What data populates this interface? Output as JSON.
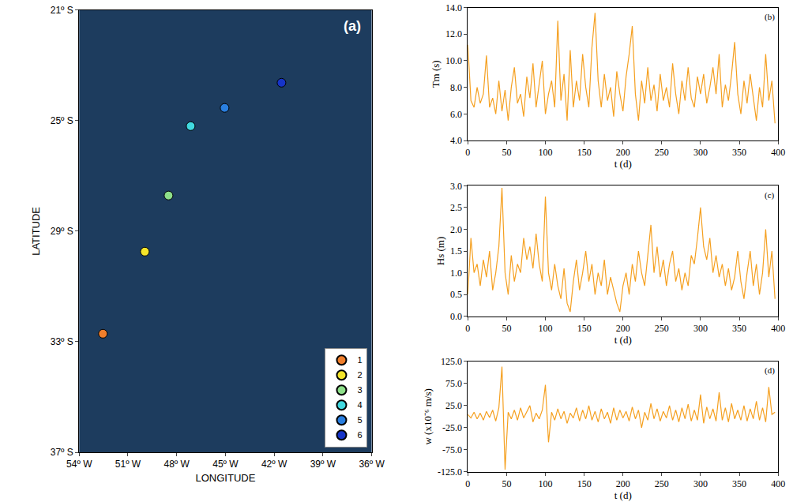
{
  "chart_data": [
    {
      "type": "scatter",
      "title": "(a)",
      "x_label": "LONGITUDE",
      "y_label": "LATITUDE",
      "marker": "circle",
      "legend": "bottom right",
      "xlim": [
        -54,
        -36
      ],
      "xticks": [
        {
          "value": -54,
          "label": "54º W"
        },
        {
          "value": -51,
          "label": "51º W"
        },
        {
          "value": -48,
          "label": "48º W"
        },
        {
          "value": -45,
          "label": "45º W"
        },
        {
          "value": -42,
          "label": "42º W"
        },
        {
          "value": -39,
          "label": "39º W"
        },
        {
          "value": -36,
          "label": "36º W"
        }
      ],
      "ylim": [
        -37,
        -21
      ],
      "yticks": [
        {
          "value": -37,
          "label": "37º S"
        },
        {
          "value": -33,
          "label": "33º S"
        },
        {
          "value": -29,
          "label": "29º S"
        },
        {
          "value": -25,
          "label": "25º S"
        },
        {
          "value": -21,
          "label": "21º S"
        }
      ],
      "series": [
        {
          "name": "1",
          "color": "#f07f2c",
          "x": [
            -52.54
          ],
          "values": [
            -32.71
          ]
        },
        {
          "name": "2",
          "color": "#f5e52a",
          "x": [
            -49.96
          ],
          "values": [
            -29.74
          ]
        },
        {
          "name": "3",
          "color": "#8ee08a",
          "x": [
            -48.5
          ],
          "values": [
            -27.71
          ]
        },
        {
          "name": "4",
          "color": "#41d9e0",
          "x": [
            -47.14
          ],
          "values": [
            -25.2
          ]
        },
        {
          "name": "5",
          "color": "#2a7fe0",
          "x": [
            -45.05
          ],
          "values": [
            -24.54
          ]
        },
        {
          "name": "6",
          "color": "#1634c8",
          "x": [
            -41.55
          ],
          "values": [
            -23.63
          ]
        }
      ]
    },
    {
      "type": "line",
      "title": "(b)",
      "x_label": "t (d)",
      "y_label": "Tm (s)",
      "color": "#f5a020",
      "xlim": [
        0,
        400
      ],
      "xticks": [
        0,
        50,
        100,
        150,
        200,
        250,
        300,
        350,
        400
      ],
      "ylim": [
        4,
        14
      ],
      "yticks": [
        {
          "value": 4,
          "label": "4.0"
        },
        {
          "value": 6,
          "label": "6.0"
        },
        {
          "value": 8,
          "label": "8.0"
        },
        {
          "value": 10,
          "label": "10.0"
        },
        {
          "value": 12,
          "label": "12.0"
        },
        {
          "value": 14,
          "label": "14.0"
        }
      ],
      "x": [
        0,
        4,
        8,
        12,
        16,
        20,
        24,
        28,
        32,
        36,
        40,
        44,
        48,
        52,
        56,
        60,
        64,
        68,
        72,
        76,
        80,
        84,
        88,
        92,
        96,
        100,
        104,
        108,
        112,
        116,
        120,
        124,
        128,
        132,
        136,
        140,
        144,
        148,
        152,
        156,
        160,
        164,
        168,
        172,
        176,
        180,
        184,
        188,
        192,
        196,
        200,
        204,
        208,
        212,
        216,
        220,
        224,
        228,
        232,
        236,
        240,
        244,
        248,
        252,
        256,
        260,
        264,
        268,
        272,
        276,
        280,
        284,
        288,
        292,
        296,
        300,
        304,
        308,
        312,
        316,
        320,
        324,
        328,
        332,
        336,
        340,
        344,
        348,
        352,
        356,
        360,
        364,
        368,
        372,
        376,
        380,
        384,
        388,
        392,
        396
      ],
      "values": [
        11.2,
        7.0,
        6.5,
        8.0,
        6.8,
        7.5,
        10.4,
        6.5,
        7.2,
        6.0,
        8.5,
        6.2,
        7.8,
        5.5,
        8.0,
        9.5,
        6.8,
        7.5,
        5.8,
        8.8,
        7.2,
        9.8,
        6.5,
        8.2,
        10.0,
        6.0,
        7.5,
        8.5,
        6.5,
        13.0,
        7.0,
        9.0,
        5.5,
        10.8,
        6.5,
        8.5,
        7.0,
        10.5,
        8.0,
        6.5,
        11.0,
        13.6,
        8.5,
        6.5,
        9.0,
        7.0,
        8.0,
        5.8,
        9.2,
        7.5,
        6.2,
        8.8,
        10.5,
        12.6,
        7.5,
        5.5,
        8.5,
        6.8,
        9.5,
        7.0,
        8.2,
        6.2,
        9.0,
        7.0,
        8.0,
        6.5,
        9.8,
        7.5,
        6.0,
        8.5,
        7.0,
        9.5,
        7.2,
        6.5,
        8.8,
        7.5,
        9.0,
        6.8,
        8.0,
        9.5,
        7.5,
        10.5,
        6.5,
        8.2,
        7.0,
        9.0,
        11.4,
        7.5,
        6.0,
        8.5,
        6.8,
        9.0,
        7.2,
        5.5,
        8.0,
        6.5,
        10.5,
        7.0,
        8.5,
        5.3
      ]
    },
    {
      "type": "line",
      "title": "(c)",
      "x_label": "t (d)",
      "y_label": "Hs (m)",
      "color": "#f5a020",
      "xlim": [
        0,
        400
      ],
      "xticks": [
        0,
        50,
        100,
        150,
        200,
        250,
        300,
        350,
        400
      ],
      "ylim": [
        0,
        3
      ],
      "yticks": [
        {
          "value": 0,
          "label": "0.0"
        },
        {
          "value": 0.5,
          "label": "0.5"
        },
        {
          "value": 1,
          "label": "1.0"
        },
        {
          "value": 1.5,
          "label": "1.5"
        },
        {
          "value": 2,
          "label": "2.0"
        },
        {
          "value": 2.5,
          "label": "2.5"
        },
        {
          "value": 3,
          "label": "3.0"
        }
      ],
      "x": [
        0,
        4,
        8,
        12,
        16,
        20,
        24,
        28,
        32,
        36,
        40,
        44,
        48,
        52,
        56,
        60,
        64,
        68,
        72,
        76,
        80,
        84,
        88,
        92,
        96,
        100,
        104,
        108,
        112,
        116,
        120,
        124,
        128,
        132,
        136,
        140,
        144,
        148,
        152,
        156,
        160,
        164,
        168,
        172,
        176,
        180,
        184,
        188,
        192,
        196,
        200,
        204,
        208,
        212,
        216,
        220,
        224,
        228,
        232,
        236,
        240,
        244,
        248,
        252,
        256,
        260,
        264,
        268,
        272,
        276,
        280,
        284,
        288,
        292,
        296,
        300,
        304,
        308,
        312,
        316,
        320,
        324,
        328,
        332,
        336,
        340,
        344,
        348,
        352,
        356,
        360,
        364,
        368,
        372,
        376,
        380,
        384,
        388,
        392,
        396
      ],
      "values": [
        0.5,
        1.8,
        1.0,
        1.2,
        0.7,
        1.3,
        0.9,
        1.5,
        0.6,
        1.0,
        1.6,
        2.95,
        1.0,
        0.5,
        1.4,
        0.8,
        1.2,
        1.0,
        1.8,
        1.3,
        1.6,
        1.1,
        1.9,
        1.2,
        0.8,
        2.75,
        1.0,
        0.6,
        1.2,
        0.7,
        0.4,
        1.1,
        0.3,
        0.1,
        0.8,
        1.3,
        0.6,
        1.0,
        1.5,
        0.8,
        1.2,
        0.5,
        1.0,
        0.7,
        1.3,
        0.5,
        0.9,
        0.6,
        0.3,
        0.1,
        0.7,
        1.0,
        0.5,
        1.2,
        0.8,
        1.5,
        1.0,
        0.7,
        1.4,
        2.1,
        1.0,
        1.6,
        0.9,
        1.3,
        0.7,
        1.2,
        1.5,
        0.8,
        1.1,
        0.6,
        1.0,
        0.7,
        1.4,
        1.2,
        1.8,
        2.5,
        1.6,
        1.3,
        1.8,
        1.0,
        1.4,
        0.9,
        1.2,
        0.7,
        1.1,
        0.6,
        0.9,
        1.5,
        0.8,
        0.4,
        1.0,
        1.5,
        0.7,
        1.2,
        0.5,
        1.0,
        2.0,
        0.9,
        1.5,
        0.4
      ]
    },
    {
      "type": "line",
      "title": "(d)",
      "x_label": "t (d)",
      "y_label": "w (x10⁻⁶ m/s)",
      "color": "#f5a020",
      "xlim": [
        0,
        400
      ],
      "xticks": [
        0,
        50,
        100,
        150,
        200,
        250,
        300,
        350,
        400
      ],
      "ylim": [
        -125,
        125
      ],
      "yticks": [
        {
          "value": -125,
          "label": "-125.0"
        },
        {
          "value": -75,
          "label": "-75.0"
        },
        {
          "value": -25,
          "label": "-25.0"
        },
        {
          "value": 25,
          "label": "25.0"
        },
        {
          "value": 75,
          "label": "75.0"
        },
        {
          "value": 125,
          "label": "125.0"
        }
      ],
      "x": [
        0,
        4,
        8,
        12,
        16,
        20,
        24,
        28,
        32,
        36,
        40,
        44,
        48,
        52,
        56,
        60,
        64,
        68,
        72,
        76,
        80,
        84,
        88,
        92,
        96,
        100,
        104,
        108,
        112,
        116,
        120,
        124,
        128,
        132,
        136,
        140,
        144,
        148,
        152,
        156,
        160,
        164,
        168,
        172,
        176,
        180,
        184,
        188,
        192,
        196,
        200,
        204,
        208,
        212,
        216,
        220,
        224,
        228,
        232,
        236,
        240,
        244,
        248,
        252,
        256,
        260,
        264,
        268,
        272,
        276,
        280,
        284,
        288,
        292,
        296,
        300,
        304,
        308,
        312,
        316,
        320,
        324,
        328,
        332,
        336,
        340,
        344,
        348,
        352,
        356,
        360,
        364,
        368,
        372,
        376,
        380,
        384,
        388,
        392,
        396
      ],
      "values": [
        5,
        -3,
        10,
        -5,
        8,
        -8,
        12,
        -2,
        15,
        -10,
        20,
        113,
        -120,
        10,
        -5,
        15,
        -8,
        20,
        -3,
        10,
        25,
        -12,
        8,
        -5,
        15,
        72,
        -58,
        10,
        -8,
        18,
        -5,
        12,
        -15,
        8,
        -3,
        20,
        -10,
        15,
        -5,
        25,
        -8,
        12,
        -12,
        18,
        -5,
        10,
        -15,
        20,
        -8,
        15,
        -3,
        12,
        -10,
        22,
        -5,
        15,
        -25,
        10,
        -8,
        30,
        -5,
        18,
        -10,
        12,
        -3,
        25,
        -8,
        15,
        -12,
        20,
        -5,
        28,
        -10,
        15,
        -8,
        50,
        -15,
        22,
        -5,
        18,
        -10,
        55,
        -8,
        20,
        -12,
        30,
        -5,
        15,
        -8,
        25,
        -10,
        18,
        -5,
        35,
        -8,
        20,
        -12,
        67,
        5,
        10
      ]
    }
  ]
}
